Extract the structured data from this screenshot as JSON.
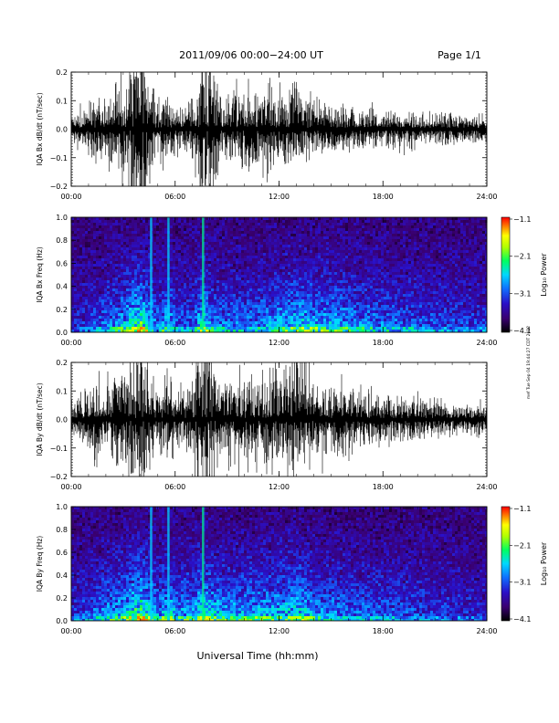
{
  "header": {
    "title": "2011/09/06  00:00−24:00 UT",
    "page": "Page 1/1"
  },
  "stamp": "mef Tue Sep 04 19:44:27 CDT 2012",
  "x_axis": {
    "ticks": [
      "00:00",
      "06:00",
      "12:00",
      "18:00",
      "24:00"
    ],
    "title": "Universal Time (hh:mm)"
  },
  "colors": {
    "trace": "#000000",
    "spectrogram_background": "#1a0a40",
    "colormap": [
      "#000000",
      "#3a0070",
      "#2a10c8",
      "#1070ff",
      "#00d8ff",
      "#00ff60",
      "#b0ff00",
      "#ffff00",
      "#ff8000",
      "#ff0000"
    ]
  },
  "chart_data": [
    {
      "type": "line",
      "ylabel": "IQA Bx dB/dt (nT/sec)",
      "ylim": [
        -0.2,
        0.2
      ],
      "yticks": [
        "0.2",
        "0.1",
        "0.0",
        "−0.1",
        "−0.2"
      ],
      "xlim_hours": [
        0,
        24
      ],
      "x_hours": [
        0,
        1,
        1.5,
        2,
        2.5,
        3,
        3.5,
        4,
        4.5,
        5,
        5.5,
        6,
        7,
        7.6,
        8,
        8.5,
        9,
        10,
        11,
        12,
        13,
        14,
        15,
        16,
        18,
        20,
        22,
        24
      ],
      "amplitude": [
        0.03,
        0.05,
        0.07,
        0.06,
        0.09,
        0.1,
        0.2,
        0.22,
        0.12,
        0.05,
        0.08,
        0.05,
        0.06,
        0.18,
        0.22,
        0.09,
        0.08,
        0.09,
        0.1,
        0.09,
        0.08,
        0.07,
        0.06,
        0.05,
        0.04,
        0.035,
        0.03,
        0.025
      ]
    },
    {
      "type": "heatmap",
      "ylabel": "IQA Bx Freq (Hz)",
      "ylim": [
        0,
        1
      ],
      "yticks": [
        "1.0",
        "0.8",
        "0.6",
        "0.4",
        "0.2",
        "0.0"
      ],
      "xlim_hours": [
        0,
        24
      ],
      "colorbar": {
        "label": "Log₁₀ Power",
        "range": [
          -4.1,
          -1.1
        ],
        "ticks": [
          "−1.1",
          "−2.1",
          "−3.1",
          "−4.1"
        ]
      },
      "activity_hours": [
        0,
        1,
        2,
        3,
        3.5,
        4,
        4.5,
        5,
        5.5,
        6,
        7,
        7.6,
        8,
        9,
        10,
        11,
        12,
        13,
        14,
        16,
        18,
        20,
        22,
        24
      ],
      "activity_level": [
        0.2,
        0.3,
        0.45,
        0.6,
        0.85,
        0.95,
        0.6,
        0.4,
        0.7,
        0.4,
        0.45,
        0.8,
        0.5,
        0.45,
        0.45,
        0.5,
        0.6,
        0.7,
        0.65,
        0.55,
        0.45,
        0.4,
        0.35,
        0.3
      ]
    },
    {
      "type": "line",
      "ylabel": "IQA By dB/dt (nT/sec)",
      "ylim": [
        -0.2,
        0.2
      ],
      "yticks": [
        "0.2",
        "0.1",
        "0.0",
        "−0.1",
        "−0.2"
      ],
      "xlim_hours": [
        0,
        24
      ],
      "x_hours": [
        0,
        1,
        1.5,
        2,
        2.5,
        3,
        3.5,
        4,
        4.5,
        5,
        5.5,
        6,
        7,
        7.6,
        8,
        8.5,
        9,
        10,
        11,
        12,
        12.5,
        13,
        13.5,
        14,
        16,
        18,
        20,
        22,
        24
      ],
      "amplitude": [
        0.04,
        0.06,
        0.08,
        0.07,
        0.1,
        0.12,
        0.2,
        0.22,
        0.14,
        0.07,
        0.12,
        0.06,
        0.07,
        0.2,
        0.22,
        0.1,
        0.1,
        0.1,
        0.1,
        0.1,
        0.12,
        0.2,
        0.12,
        0.09,
        0.07,
        0.05,
        0.045,
        0.035,
        0.03
      ]
    },
    {
      "type": "heatmap",
      "ylabel": "IQA By Freq (Hz)",
      "ylim": [
        0,
        1
      ],
      "yticks": [
        "1.0",
        "0.8",
        "0.6",
        "0.4",
        "0.2",
        "0.0"
      ],
      "xlim_hours": [
        0,
        24
      ],
      "colorbar": {
        "label": "Log₁₀ Power",
        "range": [
          -4.1,
          -1.1
        ],
        "ticks": [
          "−1.1",
          "−2.1",
          "−3.1",
          "−4.1"
        ]
      },
      "activity_hours": [
        0,
        1,
        2,
        3,
        3.5,
        4,
        4.5,
        5,
        5.5,
        6,
        7,
        7.6,
        8,
        9,
        10,
        11,
        12,
        13,
        14,
        16,
        18,
        20,
        22,
        24
      ],
      "activity_level": [
        0.3,
        0.4,
        0.55,
        0.65,
        0.85,
        0.95,
        0.7,
        0.5,
        0.75,
        0.55,
        0.6,
        0.85,
        0.7,
        0.6,
        0.6,
        0.6,
        0.65,
        0.75,
        0.55,
        0.45,
        0.4,
        0.35,
        0.3,
        0.25
      ]
    }
  ]
}
